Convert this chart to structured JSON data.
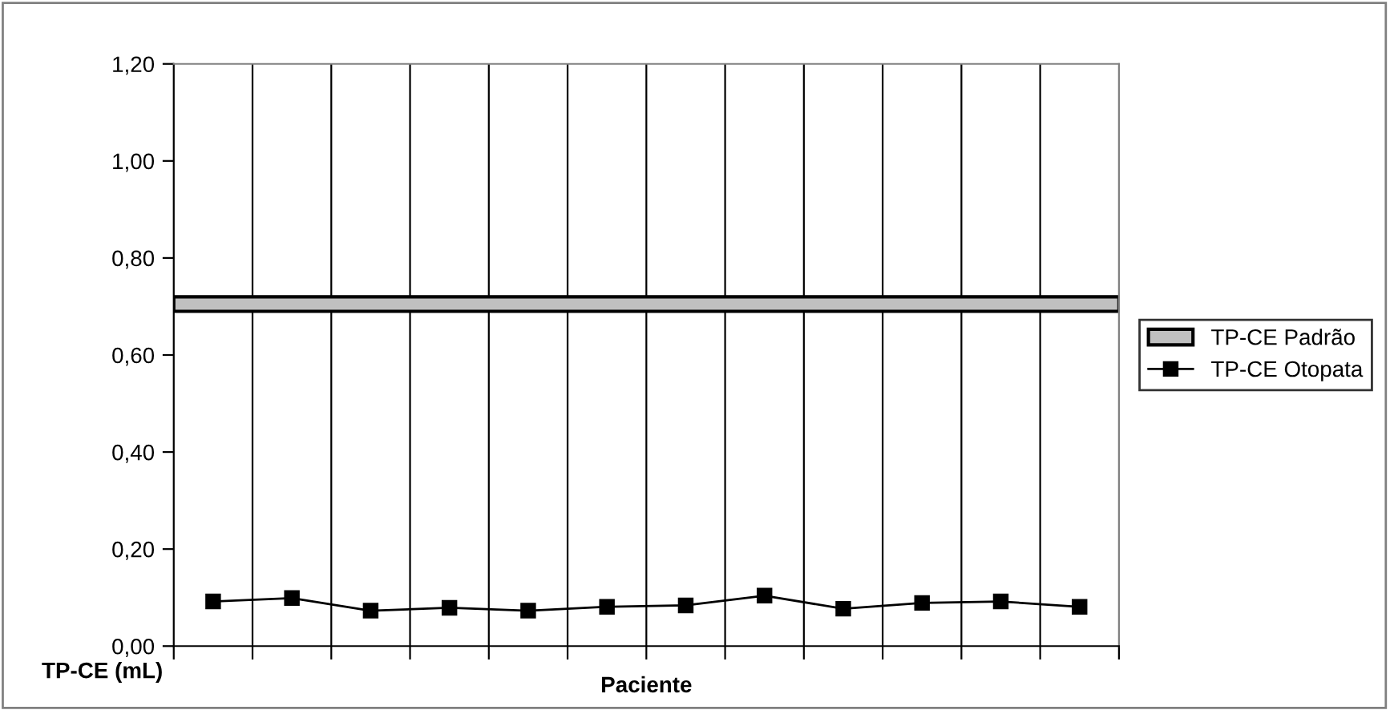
{
  "chart_data": {
    "type": "line",
    "xlabel": "Paciente",
    "ylabel": "TP-CE (mL)",
    "categories": [
      null,
      null,
      null,
      null,
      null,
      null,
      null,
      null,
      null,
      null,
      null,
      null
    ],
    "series": [
      {
        "name": "TP-CE Otopata",
        "color": "#000000",
        "values": [
          0.092,
          0.099,
          0.073,
          0.079,
          0.073,
          0.081,
          0.084,
          0.104,
          0.077,
          0.089,
          0.092,
          0.081
        ]
      }
    ],
    "bands": [
      {
        "axis": "y",
        "from": 0.69,
        "to": 0.72,
        "label": "TP-CE Padrão",
        "color": "#c0c0c0"
      }
    ],
    "ylim": [
      0,
      1.2
    ],
    "yticks": [
      {
        "value": 0,
        "label": "0,00"
      },
      {
        "value": 0.2,
        "label": "0,20"
      },
      {
        "value": 0.4,
        "label": "0,40"
      },
      {
        "value": 0.6,
        "label": "0,60"
      },
      {
        "value": 0.8,
        "label": "0,80"
      },
      {
        "value": 1.0,
        "label": "1,00"
      },
      {
        "value": 1.2,
        "label": "1,20"
      }
    ],
    "grid": "x",
    "legend": "right",
    "marker": "square",
    "line_style": "solid"
  }
}
